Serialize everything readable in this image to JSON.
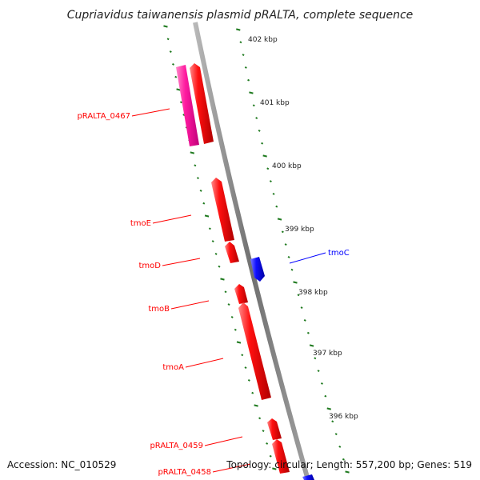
{
  "title": "Cupriavidus taiwanensis plasmid pRALTA, complete sequence",
  "footer": {
    "accession": "Accession: NC_010529",
    "topology": "Topology: circular; Length: 557,200 bp; Genes: 519"
  },
  "colors": {
    "forward_gene": "#ff0000",
    "reverse_gene": "#0000ff",
    "pseudo_gene": "#ff1493",
    "tick": "#1f7a1f",
    "backbone": "#808080"
  },
  "ticks": [
    {
      "kbp": 402,
      "label": "402 kbp"
    },
    {
      "kbp": 401,
      "label": "401 kbp"
    },
    {
      "kbp": 400,
      "label": "400 kbp"
    },
    {
      "kbp": 399,
      "label": "399 kbp"
    },
    {
      "kbp": 398,
      "label": "398 kbp"
    },
    {
      "kbp": 397,
      "label": "397 kbp"
    },
    {
      "kbp": 396,
      "label": "396 kbp"
    }
  ],
  "labels": {
    "pRALTA_0467": "pRALTA_0467",
    "tmoE": "tmoE",
    "tmoD": "tmoD",
    "tmoB": "tmoB",
    "tmoA": "tmoA",
    "pRALTA_0459": "pRALTA_0459",
    "pRALTA_0458": "pRALTA_0458",
    "tmoC": "tmoC"
  }
}
